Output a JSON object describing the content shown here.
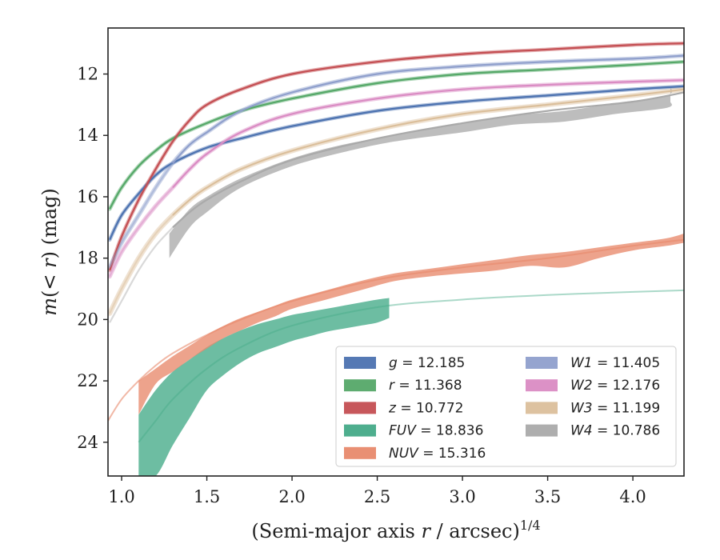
{
  "chart_data": {
    "type": "line",
    "xlabel": "(Semi-major axis r / arcsec)",
    "xlabel_italic_part": "r",
    "xlabel_pre": "(Semi-major axis ",
    "xlabel_post": " / arcsec)",
    "xlabel_sup": "1/4",
    "ylabel_pre": "m(",
    "ylabel_mid": "< r",
    "ylabel_post": ") (mag)",
    "xlim": [
      0.92,
      4.3
    ],
    "ylim": [
      25.1,
      10.5
    ],
    "y_inverted": true,
    "xticks": [
      "1.0",
      "1.5",
      "2.0",
      "2.5",
      "3.0",
      "3.5",
      "4.0"
    ],
    "yticks": [
      "12",
      "14",
      "16",
      "18",
      "20",
      "22",
      "24"
    ],
    "grid": false,
    "legend_position": "lower-right",
    "series": [
      {
        "name": "g = 12.185",
        "legend_var": "g",
        "legend_val": "= 12.185",
        "color": "#4c72b0",
        "x": [
          0.93,
          1.0,
          1.1,
          1.2,
          1.3,
          1.5,
          1.7,
          2.0,
          2.5,
          3.0,
          3.5,
          4.0,
          4.3
        ],
        "y": [
          17.4,
          16.6,
          15.9,
          15.3,
          14.9,
          14.4,
          14.1,
          13.7,
          13.2,
          12.9,
          12.7,
          12.5,
          12.4
        ],
        "width": 2.2,
        "band": 2.5
      },
      {
        "name": "r = 11.368",
        "legend_var": "r",
        "legend_val": "= 11.368",
        "color": "#55a868",
        "x": [
          0.93,
          1.0,
          1.1,
          1.2,
          1.3,
          1.5,
          1.7,
          2.0,
          2.5,
          3.0,
          3.5,
          4.0,
          4.3
        ],
        "y": [
          16.4,
          15.7,
          15.0,
          14.5,
          14.1,
          13.6,
          13.2,
          12.8,
          12.3,
          12.0,
          11.85,
          11.7,
          11.6
        ],
        "width": 2.2,
        "band": 2.5
      },
      {
        "name": "z = 10.772",
        "legend_var": "z",
        "legend_val": "= 10.772",
        "color": "#c44e52",
        "x": [
          0.93,
          1.0,
          1.1,
          1.2,
          1.3,
          1.4,
          1.5,
          1.7,
          2.0,
          2.5,
          3.0,
          3.5,
          4.0,
          4.3
        ],
        "y": [
          18.4,
          17.3,
          16.1,
          15.1,
          14.2,
          13.5,
          13.0,
          12.5,
          12.0,
          11.6,
          11.35,
          11.2,
          11.05,
          11.0
        ],
        "width": 2.2,
        "band": 2.5
      },
      {
        "name": "FUV = 18.836",
        "legend_var": "FUV",
        "legend_val": "= 18.836",
        "color": "#44aa88",
        "alpha_line": 0.45,
        "x": [
          1.1,
          1.2,
          1.3,
          1.5,
          1.7,
          2.0,
          2.5,
          3.0,
          3.5,
          4.0,
          4.3
        ],
        "y": [
          24.0,
          23.3,
          22.6,
          21.6,
          20.9,
          20.2,
          19.6,
          19.35,
          19.2,
          19.1,
          19.05
        ],
        "width": 2.0,
        "band_x": [
          1.1,
          1.2,
          1.3,
          1.4,
          1.5,
          1.6,
          1.7,
          1.8,
          1.9,
          2.0,
          2.1,
          2.2,
          2.3,
          2.4,
          2.5,
          2.57
        ],
        "band_upper": [
          23.1,
          22.3,
          21.7,
          21.3,
          20.9,
          20.6,
          20.35,
          20.15,
          20.0,
          19.85,
          19.75,
          19.65,
          19.55,
          19.45,
          19.35,
          19.3
        ],
        "band_lower": [
          25.1,
          25.1,
          24.1,
          23.2,
          22.3,
          21.8,
          21.4,
          21.1,
          20.9,
          20.7,
          20.55,
          20.4,
          20.3,
          20.2,
          20.1,
          19.95
        ]
      },
      {
        "name": "NUV = 15.316",
        "legend_var": "NUV",
        "legend_val": "= 15.316",
        "color": "#e8896b",
        "alpha_line": 0.6,
        "x": [
          0.92,
          1.0,
          1.1,
          1.2,
          1.3,
          1.5,
          1.7,
          2.0,
          2.5,
          3.0,
          3.5,
          4.0,
          4.3
        ],
        "y": [
          23.3,
          22.6,
          22.0,
          21.5,
          21.1,
          20.5,
          20.0,
          19.4,
          18.7,
          18.3,
          18.0,
          17.6,
          17.4
        ],
        "width": 2.0,
        "band_x": [
          1.1,
          1.2,
          1.3,
          1.4,
          1.5,
          1.6,
          1.7,
          1.8,
          1.9,
          2.0,
          2.2,
          2.4,
          2.6,
          2.8,
          3.0,
          3.2,
          3.4,
          3.6,
          3.8,
          4.0,
          4.2,
          4.3
        ],
        "band_upper": [
          22.0,
          21.6,
          21.2,
          20.85,
          20.5,
          20.2,
          19.95,
          19.75,
          19.55,
          19.35,
          19.05,
          18.75,
          18.5,
          18.35,
          18.2,
          18.05,
          17.9,
          17.8,
          17.65,
          17.5,
          17.35,
          17.2
        ],
        "band_lower": [
          23.1,
          22.1,
          21.7,
          21.3,
          20.95,
          20.6,
          20.35,
          20.1,
          19.9,
          19.65,
          19.35,
          19.05,
          18.75,
          18.6,
          18.5,
          18.4,
          18.25,
          18.3,
          18.0,
          17.75,
          17.6,
          17.5
        ]
      },
      {
        "name": "W1 = 11.405",
        "legend_var": "W1",
        "legend_val": "= 11.405",
        "color": "#8f9fcc",
        "x": [
          0.93,
          1.0,
          1.1,
          1.2,
          1.3,
          1.4,
          1.5,
          1.7,
          2.0,
          2.5,
          3.0,
          3.5,
          4.0,
          4.3
        ],
        "y": [
          18.3,
          17.5,
          16.6,
          15.7,
          14.9,
          14.3,
          13.9,
          13.2,
          12.6,
          12.0,
          11.75,
          11.6,
          11.5,
          11.4
        ],
        "width": 2.2,
        "band": 3,
        "faded_until": 1.28
      },
      {
        "name": "W2 = 12.176",
        "legend_var": "W2",
        "legend_val": "= 12.176",
        "color": "#da8bc3",
        "x": [
          0.93,
          1.0,
          1.1,
          1.2,
          1.3,
          1.4,
          1.5,
          1.7,
          2.0,
          2.5,
          3.0,
          3.5,
          4.0,
          4.3
        ],
        "y": [
          18.6,
          17.8,
          17.0,
          16.3,
          15.7,
          15.1,
          14.6,
          13.9,
          13.3,
          12.8,
          12.5,
          12.35,
          12.25,
          12.2
        ],
        "width": 2.2,
        "band": 3,
        "faded_until": 1.28
      },
      {
        "name": "W3 = 11.199",
        "legend_var": "W3",
        "legend_val": "= 11.199",
        "color": "#dbbf9b",
        "x": [
          0.93,
          1.0,
          1.1,
          1.2,
          1.3,
          1.4,
          1.5,
          1.7,
          2.0,
          2.5,
          3.0,
          3.5,
          4.0,
          4.3
        ],
        "y": [
          19.8,
          19.0,
          18.0,
          17.2,
          16.6,
          16.1,
          15.7,
          15.1,
          14.5,
          13.8,
          13.3,
          13.0,
          12.7,
          12.5
        ],
        "width": 2.2,
        "band": 4,
        "faded_until": 1.28
      },
      {
        "name": "W4 = 10.786",
        "legend_var": "W4",
        "legend_val": "= 10.786",
        "color": "#aaaaaa",
        "x": [
          0.93,
          1.0,
          1.1,
          1.2,
          1.3,
          1.4,
          1.5,
          1.7,
          2.0,
          2.5,
          3.0,
          3.5,
          4.0,
          4.3
        ],
        "y": [
          20.1,
          19.4,
          18.4,
          17.6,
          17.0,
          16.5,
          16.1,
          15.5,
          14.8,
          14.1,
          13.6,
          13.2,
          12.9,
          12.6
        ],
        "width": 2.2,
        "faded_until": 1.28,
        "band_x": [
          1.28,
          1.4,
          1.5,
          1.7,
          2.0,
          2.3,
          2.6,
          3.0,
          3.3,
          3.6,
          3.9,
          4.2,
          4.22
        ],
        "band_upper": [
          17.2,
          16.4,
          16.0,
          15.4,
          14.75,
          14.3,
          14.0,
          13.6,
          13.35,
          13.2,
          12.95,
          12.7,
          12.4
        ],
        "band_lower": [
          18.0,
          17.0,
          16.5,
          15.7,
          15.0,
          14.55,
          14.2,
          13.9,
          13.65,
          13.55,
          13.3,
          13.1,
          12.9
        ]
      }
    ]
  }
}
